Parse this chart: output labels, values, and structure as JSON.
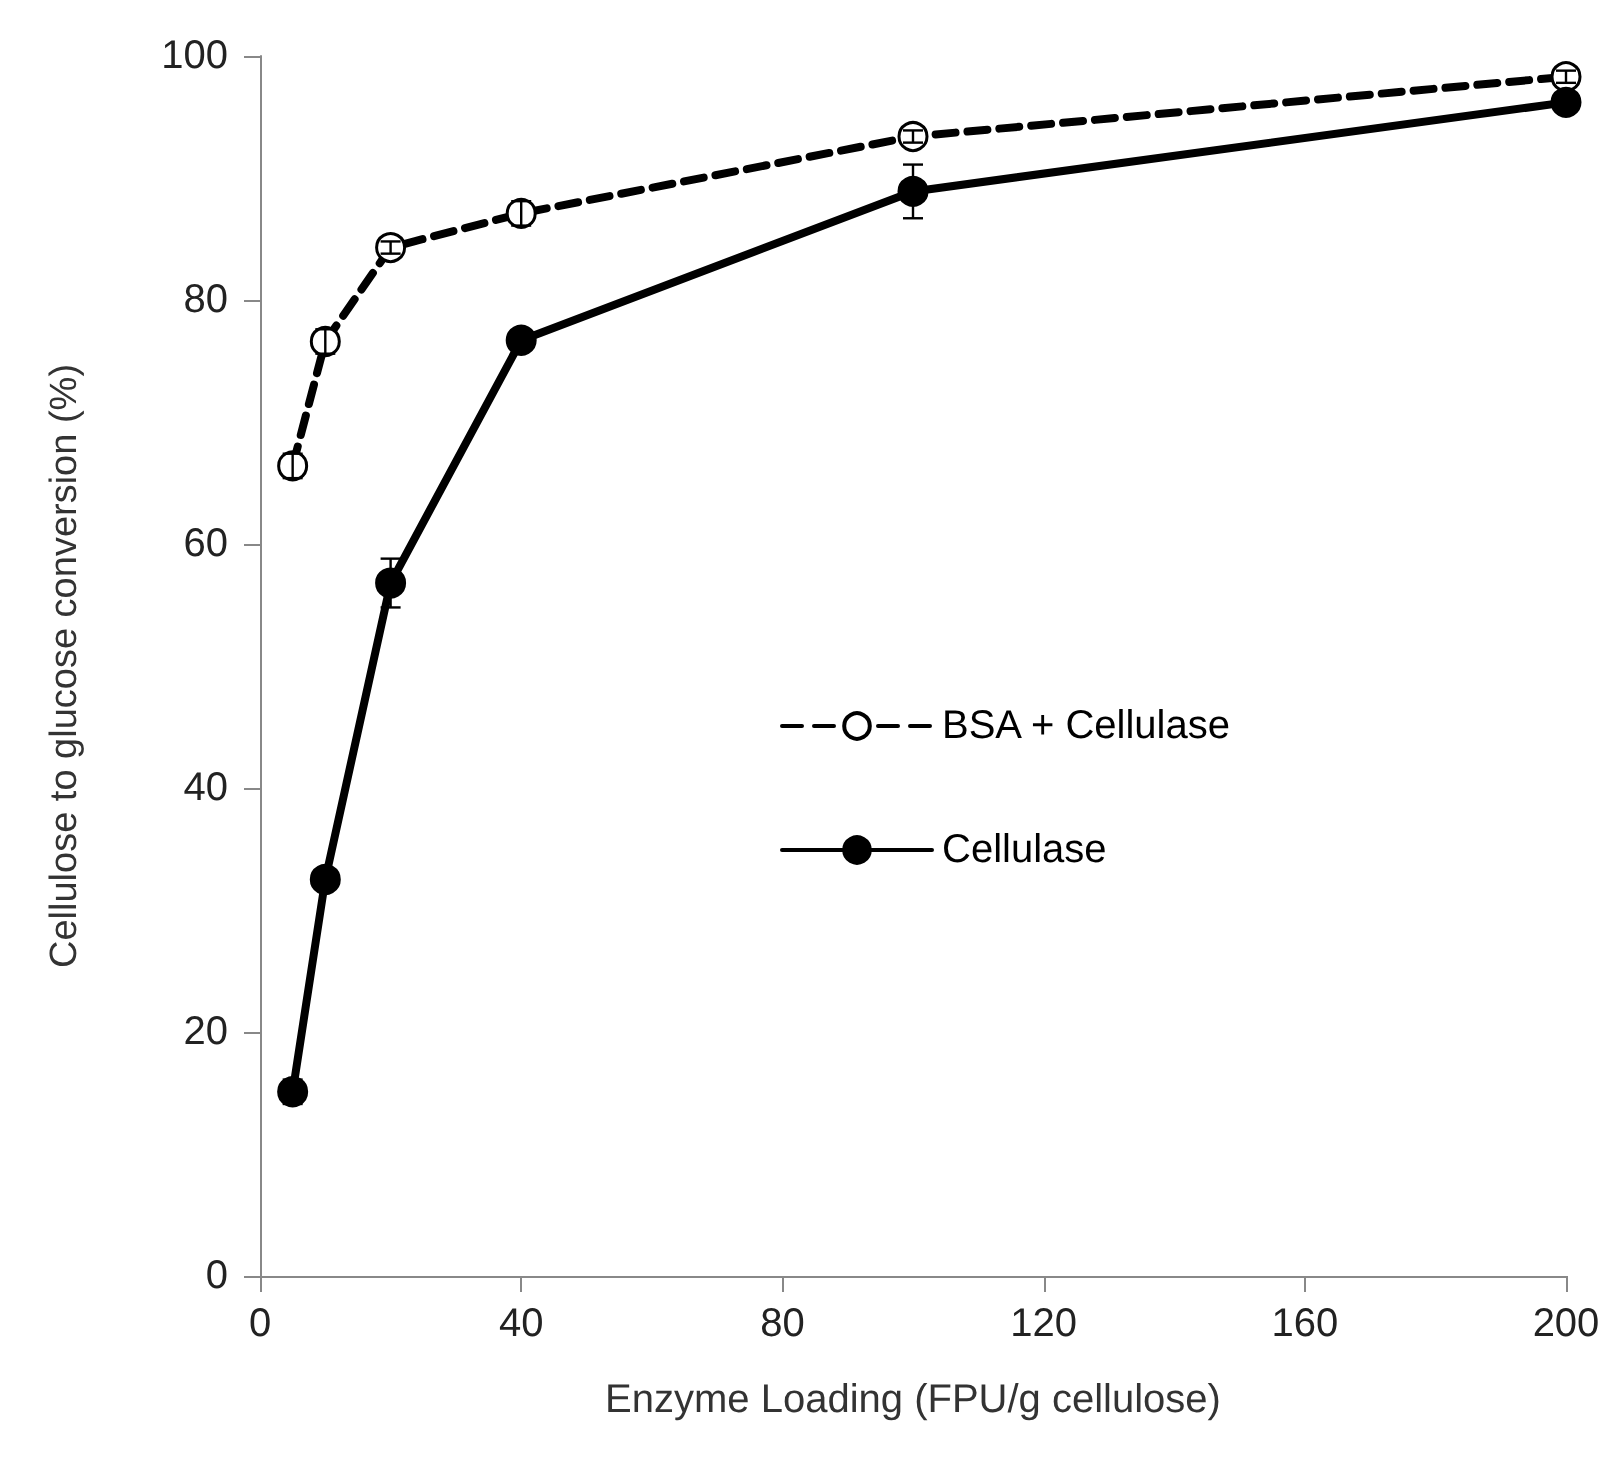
{
  "chart_data": {
    "type": "line",
    "xlabel": "Enzyme Loading (FPU/g cellulose)",
    "ylabel": "Cellulose to glucose conversion (%)",
    "x": [
      5,
      10,
      20,
      40,
      100,
      200
    ],
    "series": [
      {
        "name": "BSA + Cellulase",
        "color": "#000000",
        "line_style": "dashed",
        "values": [
          66.4,
          76.6,
          84.3,
          87.1,
          93.4,
          98.3
        ],
        "errors": [
          1,
          1,
          0.5,
          1,
          0.5,
          0.5
        ]
      },
      {
        "name": "Cellulase",
        "color": "#000000",
        "line_style": "solid",
        "values": [
          15.1,
          32.5,
          56.8,
          76.7,
          88.9,
          96.2
        ],
        "errors": [
          1,
          0.5,
          2,
          0.5,
          2.2,
          0.5
        ]
      }
    ],
    "xlim": [
      0,
      200
    ],
    "xticks": [
      0,
      40,
      80,
      120,
      160,
      200
    ],
    "ylim": [
      0,
      100
    ],
    "yticks": [
      0,
      20,
      40,
      60,
      80,
      100
    ],
    "grid": false,
    "legend": "right",
    "marker": "circle"
  }
}
